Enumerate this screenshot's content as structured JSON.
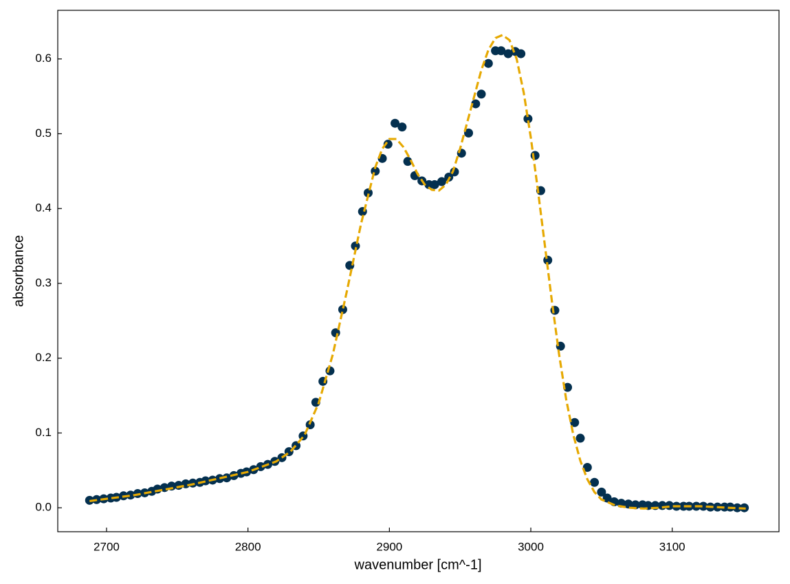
{
  "chart_data": {
    "type": "scatter",
    "x_label": "wavenumber [cm^-1]",
    "y_label": "absorbance",
    "xlim": [
      2665.5,
      3175.5
    ],
    "ylim": [
      -0.032,
      0.665
    ],
    "xticks": [
      2700,
      2800,
      2900,
      3000,
      3100
    ],
    "yticks": [
      {
        "value": 0,
        "label": "0.0"
      },
      0.1,
      0.2,
      0.3,
      0.4,
      0.5,
      0.6
    ],
    "series": [
      {
        "type": "scatter",
        "color": "#04304f",
        "x": [
          2688,
          2693,
          2698,
          2703,
          2707,
          2712,
          2717,
          2722,
          2727,
          2732,
          2736,
          2741,
          2746,
          2751,
          2756,
          2761,
          2766,
          2770,
          2775,
          2780,
          2785,
          2790,
          2795,
          2799,
          2804,
          2809,
          2814,
          2819,
          2824,
          2829,
          2834,
          2839,
          2844,
          2848,
          2853,
          2858,
          2862,
          2867,
          2872,
          2876,
          2881,
          2885,
          2890,
          2895,
          2899,
          2904,
          2909,
          2913,
          2918,
          2923,
          2928,
          2932,
          2937,
          2942,
          2946,
          2951,
          2956,
          2961,
          2965,
          2970,
          2975,
          2979,
          2984,
          2989,
          2993,
          2998,
          3003,
          3007,
          3012,
          3017,
          3021,
          3026,
          3031,
          3035,
          3040,
          3045,
          3050,
          3054,
          3059,
          3064,
          3069,
          3074,
          3079,
          3083,
          3088,
          3093,
          3098,
          3103,
          3108,
          3112,
          3117,
          3122,
          3127,
          3132,
          3137,
          3141,
          3146,
          3151
        ],
        "values": [
          0.01,
          0.011,
          0.012,
          0.013,
          0.014,
          0.016,
          0.017,
          0.019,
          0.02,
          0.022,
          0.025,
          0.027,
          0.029,
          0.03,
          0.032,
          0.033,
          0.034,
          0.036,
          0.037,
          0.039,
          0.04,
          0.043,
          0.046,
          0.048,
          0.051,
          0.055,
          0.058,
          0.062,
          0.067,
          0.075,
          0.083,
          0.096,
          0.111,
          0.141,
          0.169,
          0.183,
          0.234,
          0.265,
          0.324,
          0.35,
          0.396,
          0.421,
          0.45,
          0.467,
          0.486,
          0.514,
          0.509,
          0.463,
          0.444,
          0.437,
          0.432,
          0.432,
          0.436,
          0.442,
          0.449,
          0.474,
          0.501,
          0.54,
          0.553,
          0.594,
          0.611,
          0.611,
          0.607,
          0.61,
          0.607,
          0.52,
          0.471,
          0.424,
          0.331,
          0.264,
          0.216,
          0.161,
          0.114,
          0.093,
          0.054,
          0.034,
          0.021,
          0.013,
          0.008,
          0.006,
          0.005,
          0.004,
          0.004,
          0.003,
          0.003,
          0.003,
          0.003,
          0.002,
          0.002,
          0.002,
          0.002,
          0.002,
          0.001,
          0.001,
          0.001,
          0.001,
          0.0,
          0.0
        ]
      },
      {
        "type": "line",
        "color": "#e6a902",
        "dashed": true,
        "x": [
          2688,
          2720,
          2760,
          2800,
          2820,
          2830,
          2840,
          2850,
          2860,
          2870,
          2880,
          2890,
          2895,
          2900,
          2905,
          2910,
          2915,
          2920,
          2925,
          2930,
          2935,
          2940,
          2945,
          2950,
          2955,
          2960,
          2965,
          2970,
          2975,
          2980,
          2985,
          2990,
          2995,
          3000,
          3005,
          3010,
          3015,
          3020,
          3025,
          3030,
          3035,
          3040,
          3045,
          3050,
          3060,
          3070,
          3080,
          3090,
          3100,
          3110,
          3120,
          3130,
          3140,
          3152
        ],
        "values": [
          0.009,
          0.017,
          0.031,
          0.048,
          0.062,
          0.075,
          0.097,
          0.14,
          0.205,
          0.29,
          0.38,
          0.455,
          0.48,
          0.493,
          0.493,
          0.482,
          0.465,
          0.446,
          0.432,
          0.425,
          0.424,
          0.432,
          0.45,
          0.48,
          0.515,
          0.55,
          0.585,
          0.612,
          0.628,
          0.632,
          0.625,
          0.6,
          0.555,
          0.495,
          0.425,
          0.35,
          0.275,
          0.205,
          0.145,
          0.098,
          0.063,
          0.038,
          0.021,
          0.011,
          0.003,
          0.0,
          -0.001,
          0.0,
          0.002,
          0.002,
          0.002,
          0.001,
          0.0,
          -0.001
        ]
      }
    ]
  }
}
